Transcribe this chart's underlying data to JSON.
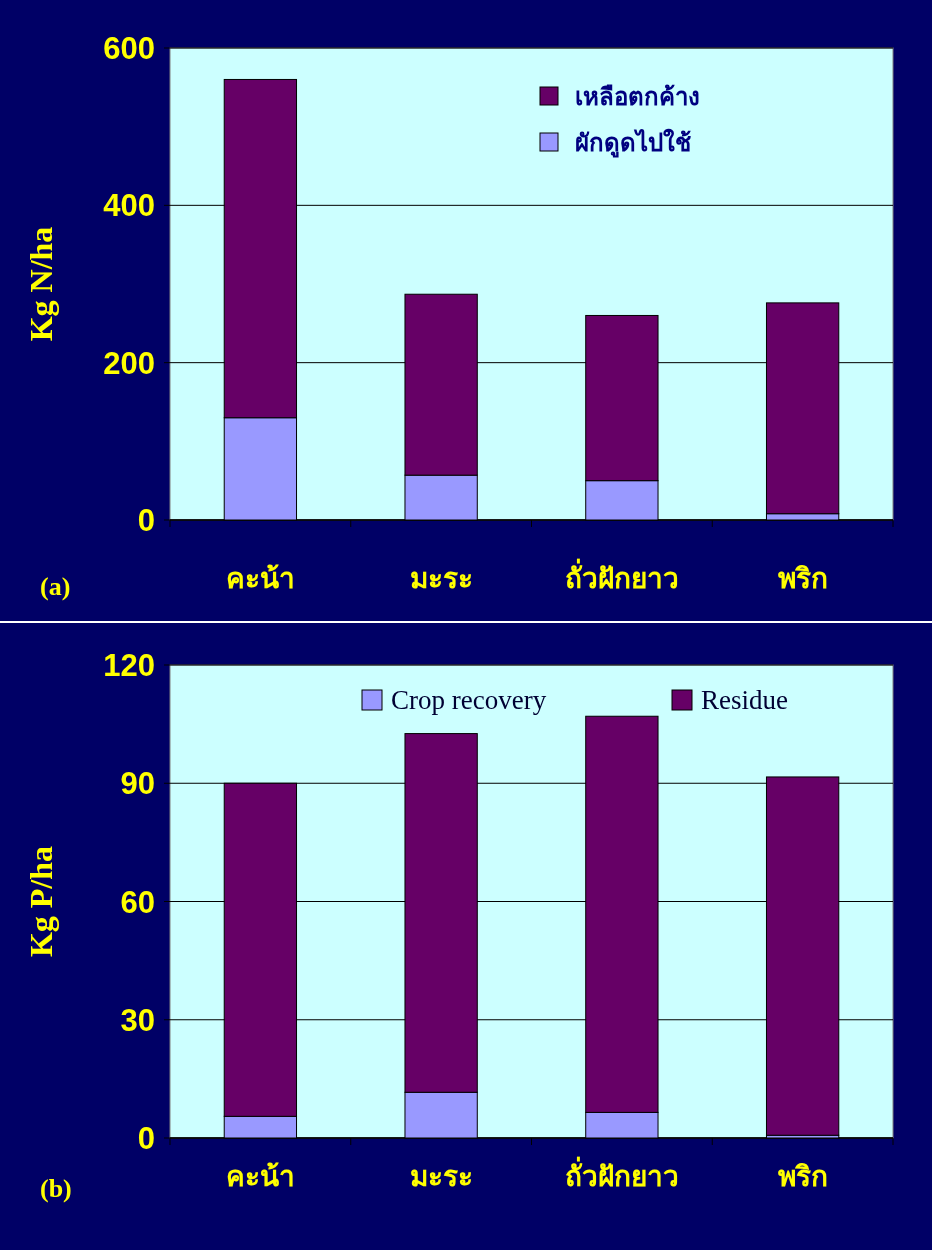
{
  "chart_data": [
    {
      "type": "bar",
      "stacked": true,
      "categories": [
        "คะน้า",
        "มะระ",
        "ถั่วฝักยาว",
        "พริก"
      ],
      "series": [
        {
          "name": "ผักดูดไปใช้",
          "color": "#9999ff",
          "values": [
            130,
            57,
            50,
            8
          ]
        },
        {
          "name": "เหลือตกค้าง",
          "color": "#660066",
          "values": [
            430,
            230,
            210,
            268
          ]
        }
      ],
      "ylabel": "Kg N/ha",
      "ylim": [
        0,
        600
      ],
      "yticks": [
        0,
        200,
        400,
        600
      ],
      "grid": "y",
      "legend": "top right",
      "annotations": [
        "(a)"
      ]
    },
    {
      "type": "bar",
      "stacked": true,
      "categories": [
        "คะน้า",
        "มะระ",
        "ถั่วฝักยาว",
        "พริก"
      ],
      "series": [
        {
          "name": "Crop recovery",
          "color": "#9999ff",
          "values": [
            5.5,
            11.6,
            6.5,
            0.7
          ]
        },
        {
          "name": "Residue",
          "color": "#660066",
          "values": [
            84.5,
            91,
            100.5,
            90.9
          ]
        }
      ],
      "ylabel": "Kg P/ha",
      "ylim": [
        0,
        120
      ],
      "yticks": [
        0,
        30,
        60,
        90,
        120
      ],
      "grid": "y",
      "legend": "top",
      "annotations": [
        "(b)"
      ]
    }
  ]
}
